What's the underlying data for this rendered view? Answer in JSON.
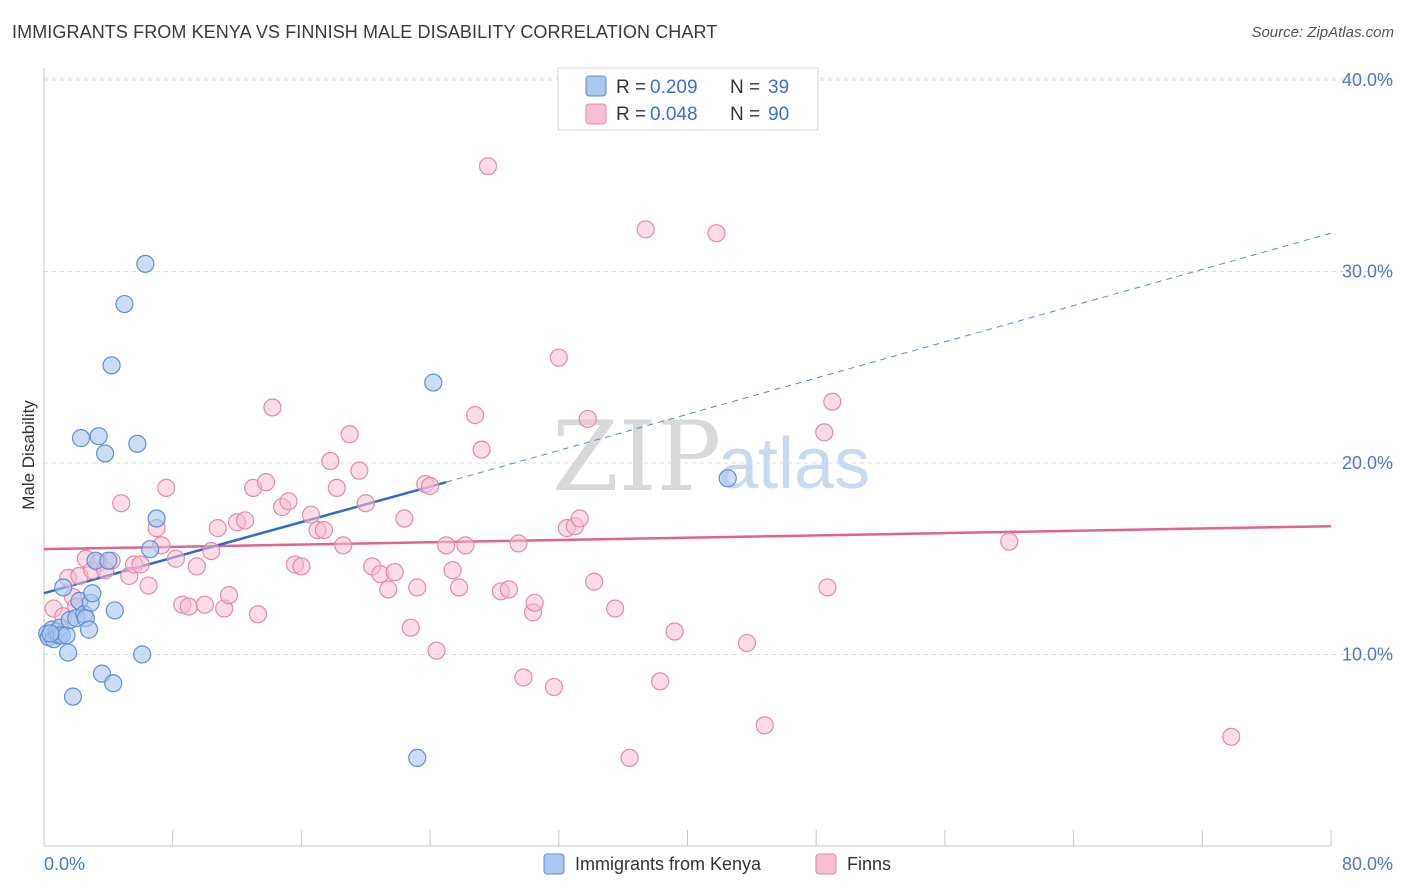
{
  "title": "IMMIGRANTS FROM KENYA VS FINNISH MALE DISABILITY CORRELATION CHART",
  "source": "Source: ZipAtlas.com",
  "watermark": {
    "left": "ZIP",
    "right": "atlas"
  },
  "legend": {
    "rows": [
      {
        "r_label": "R =",
        "r_value": "0.209",
        "n_label": "N =",
        "n_value": "39"
      },
      {
        "r_label": "R =",
        "r_value": "0.048",
        "n_label": "N =",
        "n_value": "90"
      }
    ]
  },
  "bottom_legend": [
    "Immigrants from Kenya",
    "Finns"
  ],
  "colors": {
    "kenya_fill": "#a9c6ef",
    "kenya_stroke": "#5f8fd6",
    "kenya_line": "#2f6cc9",
    "finns_fill": "#f7c0d2",
    "finns_stroke": "#e58aa9",
    "finns_line": "#e0648f",
    "grid": "#dcdcdc",
    "tick_label": "#4a78c8"
  },
  "chart_data": {
    "type": "scatter",
    "title": "IMMIGRANTS FROM KENYA VS FINNISH MALE DISABILITY CORRELATION CHART",
    "xlabel": "",
    "ylabel": "Male Disability",
    "xlim": [
      0,
      80
    ],
    "ylim": [
      0,
      42
    ],
    "x_tick_labels": [
      "0.0%",
      "80.0%"
    ],
    "y_ticks": [
      10,
      20,
      30,
      40
    ],
    "y_tick_labels": [
      "10.0%",
      "20.0%",
      "30.0%",
      "40.0%"
    ],
    "grid": true,
    "legend_position": "top-center",
    "series": [
      {
        "name": "Immigrants from Kenya",
        "R": 0.209,
        "N": 39,
        "trend": {
          "x0": 0,
          "y0": 13.2,
          "x1": 25,
          "y1": 19.0,
          "dashed_to_x": 80,
          "dashed_to_y": 32.0
        },
        "points": [
          [
            0.2,
            11.1
          ],
          [
            0.3,
            10.9
          ],
          [
            0.5,
            11.3
          ],
          [
            0.6,
            10.8
          ],
          [
            0.8,
            11.2
          ],
          [
            0.9,
            11.0
          ],
          [
            1.0,
            11.4
          ],
          [
            1.1,
            11.0
          ],
          [
            1.2,
            13.5
          ],
          [
            1.4,
            11.0
          ],
          [
            1.5,
            10.1
          ],
          [
            1.6,
            11.8
          ],
          [
            1.8,
            7.8
          ],
          [
            2.0,
            11.9
          ],
          [
            2.2,
            12.8
          ],
          [
            2.3,
            21.3
          ],
          [
            2.5,
            12.1
          ],
          [
            2.6,
            11.9
          ],
          [
            2.8,
            11.3
          ],
          [
            2.9,
            12.7
          ],
          [
            3.0,
            13.2
          ],
          [
            3.2,
            14.9
          ],
          [
            3.4,
            21.4
          ],
          [
            3.6,
            9.0
          ],
          [
            3.8,
            20.5
          ],
          [
            4.0,
            14.9
          ],
          [
            4.2,
            25.1
          ],
          [
            4.3,
            8.5
          ],
          [
            4.4,
            12.3
          ],
          [
            5.0,
            28.3
          ],
          [
            5.8,
            21.0
          ],
          [
            6.1,
            10.0
          ],
          [
            6.3,
            30.4
          ],
          [
            6.6,
            15.5
          ],
          [
            7.0,
            17.1
          ],
          [
            23.2,
            4.6
          ],
          [
            24.2,
            24.2
          ],
          [
            42.5,
            19.2
          ],
          [
            0.4,
            11.1
          ]
        ]
      },
      {
        "name": "Finns",
        "R": 0.048,
        "N": 90,
        "trend": {
          "x0": 0,
          "y0": 15.5,
          "x1": 80,
          "y1": 16.7
        },
        "points": [
          [
            0.6,
            12.4
          ],
          [
            1.2,
            12.0
          ],
          [
            1.5,
            14.0
          ],
          [
            1.8,
            13.0
          ],
          [
            2.0,
            12.5
          ],
          [
            2.2,
            14.1
          ],
          [
            2.6,
            15.0
          ],
          [
            3.0,
            14.4
          ],
          [
            3.4,
            14.8
          ],
          [
            3.8,
            14.4
          ],
          [
            4.2,
            14.9
          ],
          [
            4.8,
            17.9
          ],
          [
            5.3,
            14.1
          ],
          [
            5.6,
            14.7
          ],
          [
            6.0,
            14.7
          ],
          [
            6.5,
            13.6
          ],
          [
            7.0,
            16.6
          ],
          [
            7.3,
            15.7
          ],
          [
            7.6,
            18.7
          ],
          [
            8.2,
            15.0
          ],
          [
            8.6,
            12.6
          ],
          [
            9.0,
            12.5
          ],
          [
            9.5,
            14.6
          ],
          [
            10.0,
            12.6
          ],
          [
            10.4,
            15.4
          ],
          [
            10.8,
            16.6
          ],
          [
            11.2,
            12.4
          ],
          [
            11.5,
            13.1
          ],
          [
            12.0,
            16.9
          ],
          [
            12.5,
            17.0
          ],
          [
            13.0,
            18.7
          ],
          [
            13.3,
            12.1
          ],
          [
            13.8,
            19.0
          ],
          [
            14.2,
            22.9
          ],
          [
            14.8,
            17.7
          ],
          [
            15.2,
            18.0
          ],
          [
            15.6,
            14.7
          ],
          [
            16.0,
            14.6
          ],
          [
            16.6,
            17.3
          ],
          [
            17.0,
            16.5
          ],
          [
            17.4,
            16.5
          ],
          [
            17.8,
            20.1
          ],
          [
            18.2,
            18.7
          ],
          [
            18.6,
            15.7
          ],
          [
            19.0,
            21.5
          ],
          [
            19.6,
            19.6
          ],
          [
            20.0,
            17.9
          ],
          [
            20.4,
            14.6
          ],
          [
            20.9,
            14.2
          ],
          [
            21.4,
            13.4
          ],
          [
            21.8,
            14.3
          ],
          [
            22.4,
            17.1
          ],
          [
            22.8,
            11.4
          ],
          [
            23.2,
            13.5
          ],
          [
            23.7,
            18.9
          ],
          [
            24.0,
            18.8
          ],
          [
            24.4,
            10.2
          ],
          [
            25.0,
            15.7
          ],
          [
            25.4,
            14.4
          ],
          [
            25.8,
            13.5
          ],
          [
            26.2,
            15.7
          ],
          [
            26.8,
            22.5
          ],
          [
            27.2,
            20.7
          ],
          [
            27.6,
            35.5
          ],
          [
            28.4,
            13.3
          ],
          [
            28.9,
            13.4
          ],
          [
            29.5,
            15.8
          ],
          [
            29.8,
            8.8
          ],
          [
            30.4,
            12.2
          ],
          [
            30.5,
            12.7
          ],
          [
            31.7,
            8.3
          ],
          [
            32.0,
            25.5
          ],
          [
            32.5,
            16.6
          ],
          [
            33.0,
            16.7
          ],
          [
            33.3,
            17.1
          ],
          [
            33.8,
            22.3
          ],
          [
            34.2,
            13.8
          ],
          [
            35.5,
            12.4
          ],
          [
            36.4,
            4.6
          ],
          [
            37.4,
            32.2
          ],
          [
            38.3,
            8.6
          ],
          [
            39.2,
            11.2
          ],
          [
            41.8,
            32.0
          ],
          [
            43.7,
            10.6
          ],
          [
            44.8,
            6.3
          ],
          [
            48.7,
            13.5
          ],
          [
            48.5,
            21.6
          ],
          [
            49.0,
            23.2
          ],
          [
            60.0,
            15.9
          ],
          [
            73.8,
            5.7
          ]
        ]
      }
    ]
  }
}
